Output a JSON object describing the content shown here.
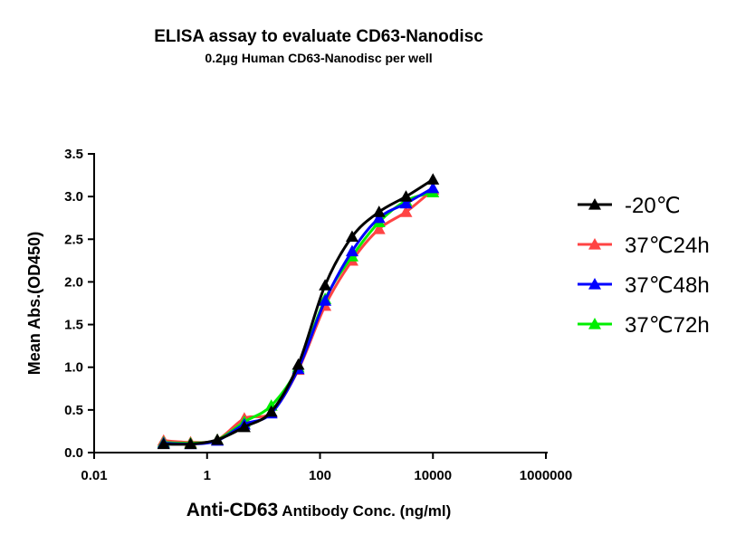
{
  "chart_data": {
    "type": "line",
    "title": "ELISA assay to evaluate CD63-Nanodisc",
    "subtitle": "0.2μg Human CD63-Nanodisc per well",
    "xlabel_bold": "Anti-CD63",
    "xlabel_rest": " Antibody Conc. (ng/ml)",
    "ylabel": "Mean Abs.(OD450)",
    "x_scale": "log",
    "xlim": [
      0.01,
      1000000
    ],
    "ylim": [
      0,
      3.5
    ],
    "x_ticks": [
      0.01,
      1,
      100,
      10000,
      1000000
    ],
    "x_tick_labels": [
      "0.01",
      "1",
      "100",
      "10000",
      "1000000"
    ],
    "y_ticks": [
      0,
      0.5,
      1,
      1.5,
      2,
      2.5,
      3,
      3.5
    ],
    "y_tick_labels": [
      "0.0",
      "0.5",
      "1.0",
      "1.5",
      "2.0",
      "2.5",
      "3.0",
      "3.5"
    ],
    "grid": false,
    "legend_position": "right",
    "x": [
      0.17,
      0.51,
      1.52,
      4.57,
      13.7,
      41.2,
      123,
      370,
      1111,
      3333,
      10000
    ],
    "series": [
      {
        "name": "-20℃",
        "color": "#000000",
        "values": [
          0.1,
          0.1,
          0.15,
          0.3,
          0.48,
          1.03,
          1.96,
          2.53,
          2.82,
          3.0,
          3.2
        ]
      },
      {
        "name": "37℃24h",
        "color": "#ff4444",
        "values": [
          0.14,
          0.12,
          0.15,
          0.4,
          0.47,
          0.97,
          1.72,
          2.25,
          2.62,
          2.82,
          3.08
        ]
      },
      {
        "name": "37℃48h",
        "color": "#0000ff",
        "values": [
          0.11,
          0.1,
          0.14,
          0.33,
          0.46,
          0.98,
          1.78,
          2.36,
          2.75,
          2.92,
          3.1
        ]
      },
      {
        "name": "37℃72h",
        "color": "#00ee00",
        "values": [
          0.12,
          0.11,
          0.15,
          0.36,
          0.55,
          1.0,
          1.8,
          2.3,
          2.7,
          2.95,
          3.05
        ]
      }
    ]
  }
}
